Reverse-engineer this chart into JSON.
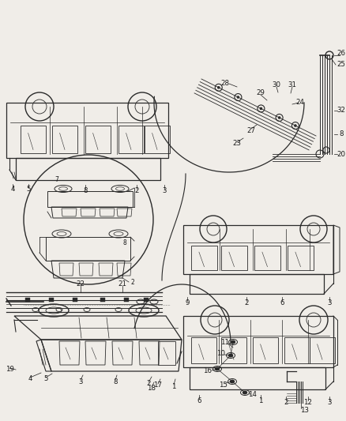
{
  "bg_color": "#f0ede8",
  "line_color": "#2a2a2a",
  "text_color": "#1a1a1a",
  "fig_width": 4.38,
  "fig_height": 5.33,
  "dpi": 100
}
